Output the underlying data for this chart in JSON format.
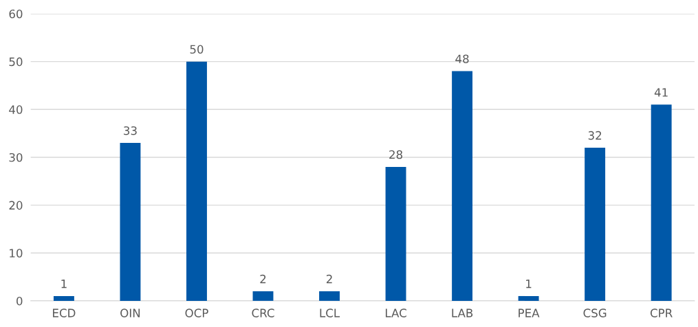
{
  "chart_data": {
    "type": "bar",
    "categories": [
      "ECD",
      "OIN",
      "OCP",
      "CRC",
      "LCL",
      "LAC",
      "LAB",
      "PEA",
      "CSG",
      "CPR"
    ],
    "values": [
      1,
      33,
      50,
      2,
      2,
      28,
      48,
      1,
      32,
      41
    ],
    "color": "#0058a8",
    "ylim": [
      0,
      60
    ],
    "yticks": [
      0,
      10,
      20,
      30,
      40,
      50,
      60
    ],
    "grid": "y",
    "data_labels": true
  }
}
